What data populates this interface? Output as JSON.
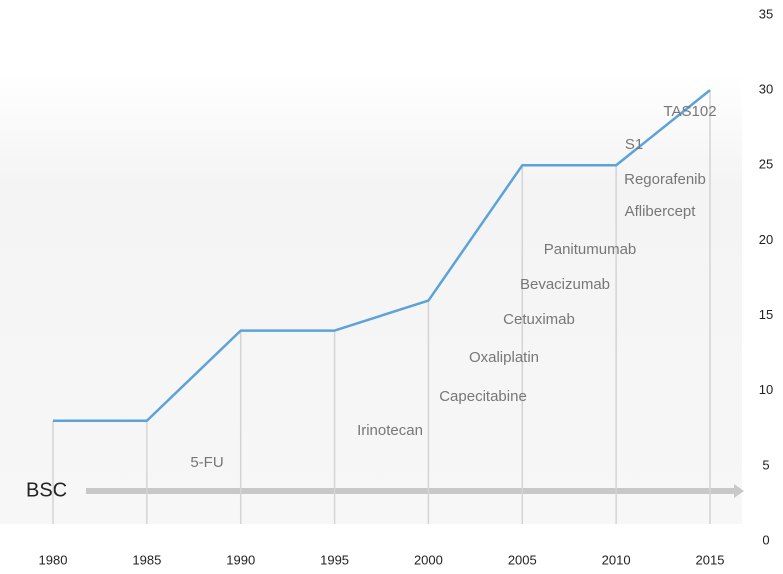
{
  "chart_data": {
    "type": "line",
    "x": [
      1980,
      1985,
      1990,
      1995,
      2000,
      2005,
      2010,
      2015
    ],
    "values": [
      8,
      8,
      14,
      14,
      16,
      25,
      25,
      30
    ],
    "color": "#5ba3d9",
    "xlim": [
      1980,
      2015
    ],
    "xticks": [
      1980,
      1985,
      1990,
      1995,
      2000,
      2005,
      2010,
      2015
    ],
    "ylim": [
      0,
      35
    ],
    "yticks": [
      0,
      5,
      10,
      15,
      20,
      25,
      30,
      35
    ],
    "grid": true,
    "baseline_label": "BSC",
    "annotations": [
      "5-FU",
      "Irinotecan",
      "Capecitabine",
      "Oxaliplatin",
      "Cetuximab",
      "Bevacizumab",
      "Panitumumab",
      "Aflibercept",
      "Regorafenib",
      "S1",
      "TAS102"
    ]
  }
}
